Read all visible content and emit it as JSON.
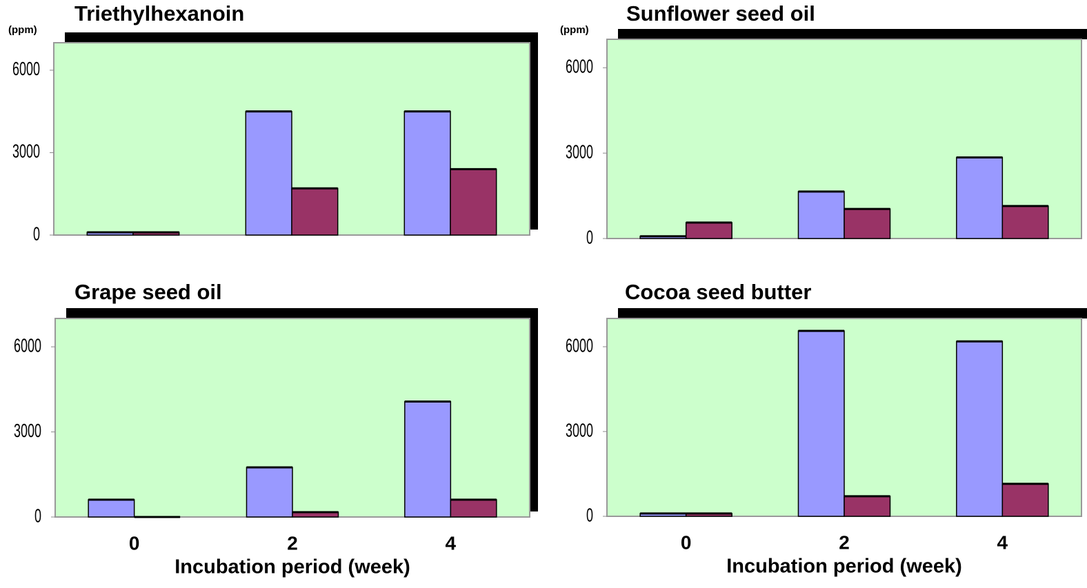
{
  "chart_data": [
    {
      "type": "bar",
      "title": "Triethylhexanoin",
      "y_unit": "(ppm)",
      "categories": [
        null,
        null,
        null
      ],
      "series": [
        {
          "color": "#9999ff",
          "values": [
            100,
            4500,
            4500
          ]
        },
        {
          "color": "#993366",
          "values": [
            100,
            1700,
            2400
          ]
        }
      ],
      "ylim": [
        0,
        7000
      ],
      "yticks": [
        0,
        3000,
        6000
      ]
    },
    {
      "type": "bar",
      "title": "Sunflower seed oil",
      "y_unit": "(ppm)",
      "categories": [
        null,
        null,
        null
      ],
      "series": [
        {
          "color": "#9999ff",
          "values": [
            80,
            1650,
            2850
          ]
        },
        {
          "color": "#993366",
          "values": [
            560,
            1040,
            1140
          ]
        }
      ],
      "ylim": [
        0,
        7000
      ],
      "yticks": [
        0,
        3000,
        6000
      ]
    },
    {
      "type": "bar",
      "title": "Grape seed oil",
      "x_label": "Incubation period (week)",
      "categories": [
        "0",
        "2",
        "4"
      ],
      "series": [
        {
          "color": "#9999ff",
          "values": [
            610,
            1750,
            4070
          ]
        },
        {
          "color": "#993366",
          "values": [
            0,
            170,
            610
          ]
        }
      ],
      "ylim": [
        0,
        7000
      ],
      "yticks": [
        0,
        3000,
        6000
      ]
    },
    {
      "type": "bar",
      "title": "Cocoa seed butter",
      "x_label": "Incubation period (week)",
      "categories": [
        "0",
        "2",
        "4"
      ],
      "series": [
        {
          "color": "#9999ff",
          "values": [
            100,
            6560,
            6190
          ]
        },
        {
          "color": "#993366",
          "values": [
            100,
            710,
            1150
          ]
        }
      ],
      "ylim": [
        0,
        7000
      ],
      "yticks": [
        0,
        3000,
        6000
      ]
    }
  ]
}
